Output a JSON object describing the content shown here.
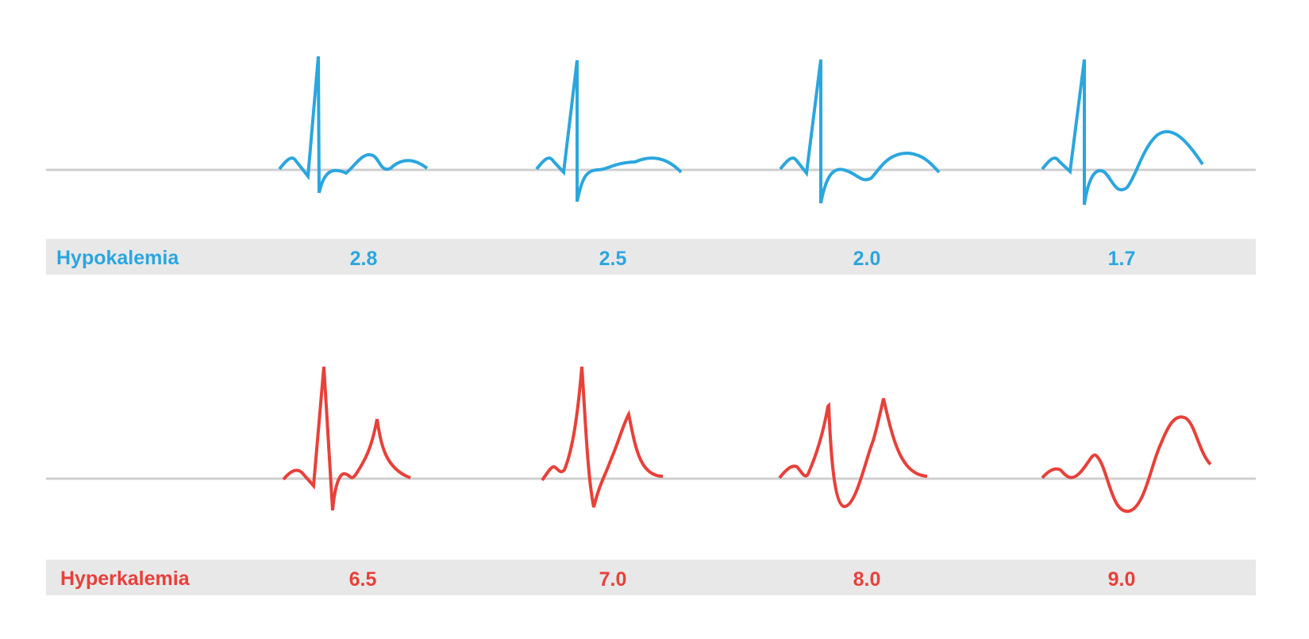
{
  "colors": {
    "hypo": "#2ba6de",
    "hyper": "#e8403a",
    "baseline": "#cfcfcf",
    "bar": "#e8e8e8"
  },
  "rows": [
    {
      "id": "hypokalemia",
      "label": "Hypokalemia",
      "color": "#2ba6de",
      "values": [
        "2.8",
        "2.5",
        "2.0",
        "1.7"
      ]
    },
    {
      "id": "hyperkalemia",
      "label": "Hyperkalemia",
      "color": "#e8403a",
      "values": [
        "6.5",
        "7.0",
        "8.0",
        "9.0"
      ]
    }
  ]
}
